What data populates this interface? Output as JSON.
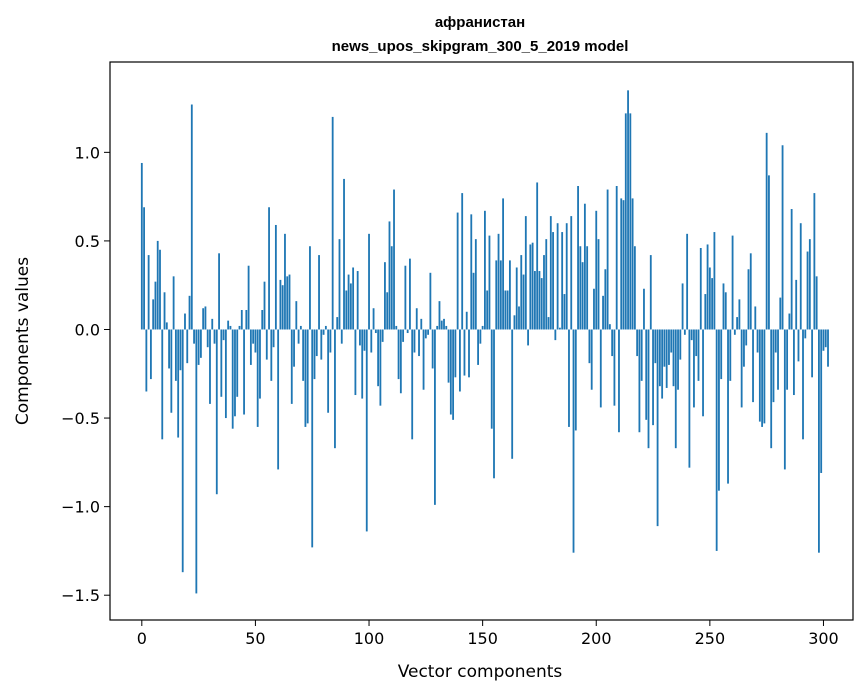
{
  "chart_data": {
    "type": "bar",
    "title_line1": "афранистан",
    "title_line2": "news_upos_skipgram_300_5_2019 model",
    "xlabel": "Vector components",
    "ylabel": "Components values",
    "xlim": [
      -14,
      313
    ],
    "ylim": [
      -1.64,
      1.51
    ],
    "xticks": [
      0,
      50,
      100,
      150,
      200,
      250,
      300
    ],
    "xtick_labels": [
      "0",
      "50",
      "100",
      "150",
      "200",
      "250",
      "300"
    ],
    "yticks": [
      -1.5,
      -1.0,
      -0.5,
      0.0,
      0.5,
      1.0
    ],
    "ytick_labels": [
      "−1.5",
      "−1.0",
      "−0.5",
      "0.0",
      "0.5",
      "1.0"
    ],
    "bar_color": "#1f77b4",
    "values": [
      0.94,
      0.69,
      -0.35,
      0.42,
      -0.28,
      0.17,
      0.27,
      0.5,
      0.45,
      -0.62,
      0.21,
      0.04,
      -0.22,
      -0.47,
      0.3,
      -0.29,
      -0.61,
      -0.23,
      -1.37,
      0.09,
      -0.19,
      0.19,
      1.27,
      -0.08,
      -1.49,
      -0.2,
      -0.16,
      0.12,
      0.13,
      -0.1,
      -0.42,
      0.06,
      -0.08,
      -0.93,
      0.43,
      -0.38,
      -0.06,
      -0.5,
      0.05,
      0.02,
      -0.56,
      -0.49,
      -0.38,
      0.02,
      0.11,
      -0.48,
      0.11,
      0.36,
      -0.2,
      -0.08,
      -0.13,
      -0.55,
      -0.39,
      0.11,
      0.27,
      -0.17,
      0.69,
      -0.29,
      -0.1,
      0.59,
      -0.79,
      0.28,
      0.25,
      0.54,
      0.3,
      0.31,
      -0.42,
      -0.21,
      0.16,
      -0.08,
      0.02,
      -0.29,
      -0.55,
      -0.53,
      0.47,
      -1.23,
      -0.28,
      -0.15,
      0.42,
      -0.17,
      -0.03,
      0.02,
      -0.47,
      -0.13,
      1.2,
      -0.67,
      0.07,
      0.51,
      -0.08,
      0.85,
      0.22,
      0.31,
      0.26,
      0.35,
      -0.37,
      0.33,
      -0.09,
      -0.39,
      -0.12,
      -1.14,
      0.54,
      -0.13,
      0.12,
      -0.02,
      -0.32,
      -0.43,
      -0.07,
      0.38,
      0.21,
      0.61,
      0.47,
      0.79,
      0.02,
      -0.28,
      -0.36,
      -0.07,
      0.36,
      -0.02,
      0.4,
      -0.62,
      -0.13,
      0.12,
      -0.15,
      0.06,
      -0.34,
      -0.05,
      -0.03,
      0.32,
      -0.22,
      -0.99,
      0.02,
      0.16,
      0.05,
      0.06,
      0.02,
      -0.3,
      -0.48,
      -0.51,
      -0.27,
      0.66,
      -0.35,
      0.77,
      -0.26,
      0.1,
      -0.27,
      0.65,
      0.32,
      0.51,
      -0.2,
      -0.08,
      0.02,
      0.67,
      0.22,
      0.53,
      -0.56,
      -0.84,
      0.39,
      0.54,
      0.39,
      0.74,
      0.22,
      0.22,
      0.39,
      -0.73,
      0.08,
      0.35,
      0.13,
      0.42,
      0.31,
      0.64,
      -0.09,
      0.48,
      0.49,
      0.33,
      0.83,
      0.33,
      0.29,
      0.42,
      0.51,
      0.07,
      0.64,
      0.55,
      -0.06,
      0.6,
      0.01,
      0.55,
      0.2,
      0.6,
      -0.55,
      0.64,
      -1.26,
      -0.57,
      0.81,
      0.47,
      0.38,
      0.71,
      0.47,
      -0.19,
      -0.34,
      0.23,
      0.67,
      0.51,
      -0.44,
      0.19,
      0.34,
      0.79,
      0.03,
      -0.15,
      -0.43,
      0.81,
      -0.58,
      0.74,
      0.73,
      1.22,
      1.35,
      1.22,
      0.74,
      0.47,
      -0.15,
      -0.58,
      -0.29,
      0.23,
      -0.51,
      -0.67,
      0.42,
      -0.54,
      -0.19,
      -1.11,
      -0.32,
      -0.39,
      -0.21,
      -0.33,
      -0.2,
      -0.13,
      -0.32,
      -0.67,
      -0.34,
      -0.17,
      0.26,
      -0.03,
      0.54,
      -0.78,
      -0.06,
      -0.44,
      -0.15,
      -0.29,
      0.46,
      -0.49,
      0.2,
      0.48,
      0.35,
      0.29,
      0.55,
      -1.25,
      -0.91,
      -0.28,
      0.26,
      0.21,
      -0.87,
      -0.29,
      0.53,
      -0.03,
      0.07,
      0.17,
      -0.44,
      -0.21,
      -0.09,
      0.34,
      0.43,
      -0.41,
      0.13,
      -0.13,
      -0.52,
      -0.55,
      -0.53,
      1.11,
      0.87,
      -0.67,
      -0.41,
      -0.13,
      -0.34,
      0.18,
      1.04,
      -0.79,
      -0.34,
      0.09,
      0.68,
      -0.37,
      0.28,
      -0.18,
      0.6,
      -0.62,
      -0.05,
      0.44,
      0.51,
      -0.27,
      0.77,
      0.3,
      -1.26,
      -0.81,
      -0.12,
      -0.1,
      -0.21
    ]
  }
}
